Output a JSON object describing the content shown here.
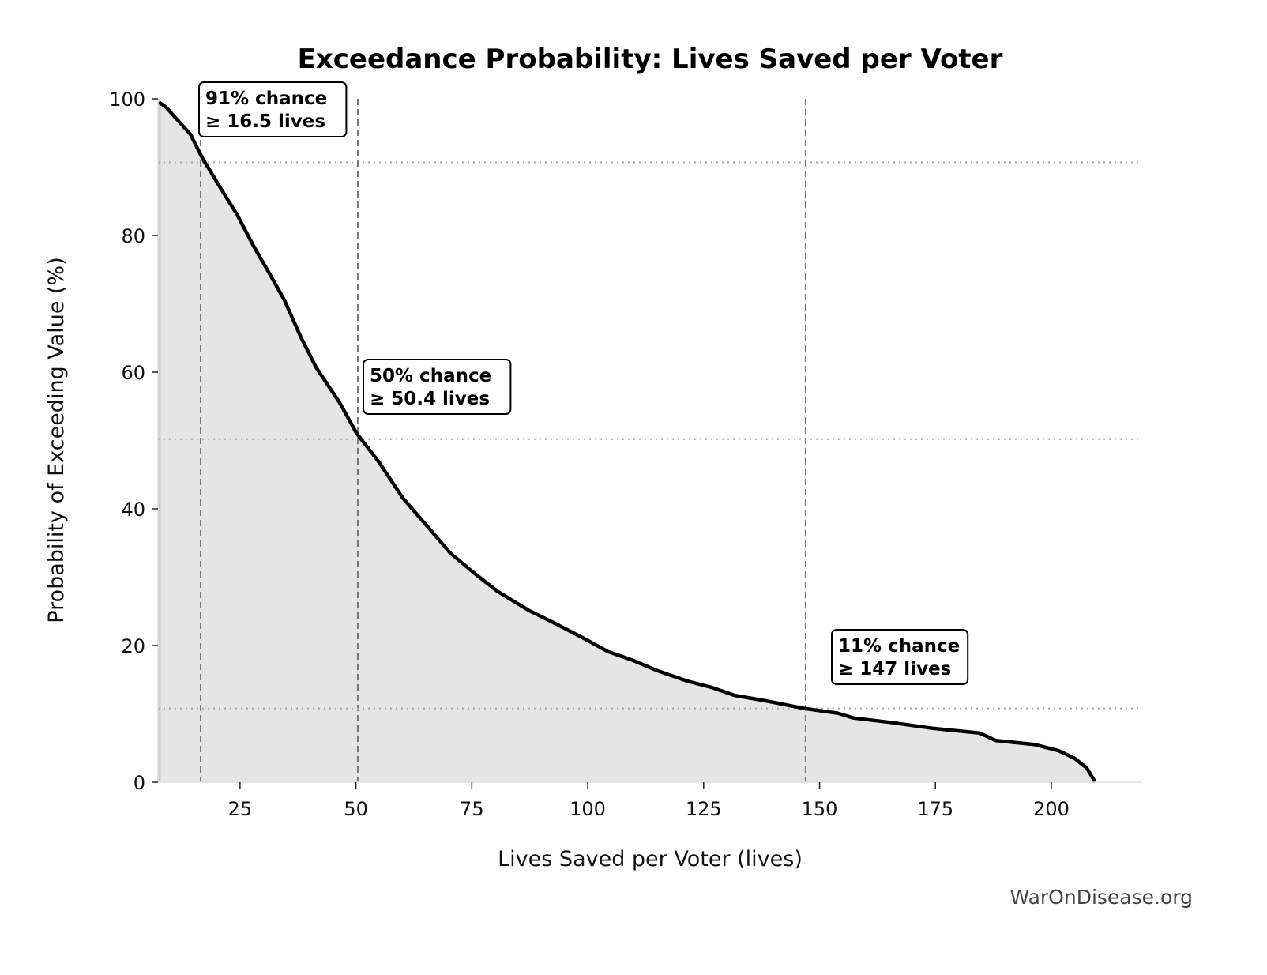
{
  "chart_data": {
    "type": "area",
    "title": "Exceedance Probability: Lives Saved per Voter",
    "xlabel": "Lives Saved per Voter (lives)",
    "ylabel": "Probability of Exceeding Value (%)",
    "xlim": [
      7.3,
      219.6
    ],
    "ylim": [
      0,
      100
    ],
    "xticks": [
      25,
      50,
      75,
      100,
      125,
      150,
      175,
      200
    ],
    "yticks": [
      0,
      20,
      40,
      60,
      80,
      100
    ],
    "grid": false,
    "line_color": "#000000",
    "fill_color": "#e5e5e5",
    "series": [
      {
        "x": [
          7.5,
          9,
          14.3,
          16.9,
          21.0,
          24.4,
          27.8,
          31.2,
          34.6,
          38,
          41.4,
          46.5,
          50.1,
          55,
          60.1,
          65.2,
          70.4,
          75.5,
          80.6,
          87.4,
          92.5,
          99.3,
          104.4,
          109.5,
          114.7,
          121.5,
          126.6,
          131.7,
          138.5,
          146.7,
          153.9,
          157.3,
          165.8,
          174.3,
          184.5,
          188,
          196.5,
          201.6,
          205,
          207.6,
          209.5
        ],
        "y": [
          99.5,
          98.8,
          94.8,
          91.3,
          86.7,
          83,
          78.6,
          74.6,
          70.5,
          65.3,
          60.7,
          55.5,
          51.1,
          46.8,
          41.6,
          37.6,
          33.5,
          30.6,
          27.9,
          25.1,
          23.4,
          21,
          19.1,
          17.9,
          16.4,
          14.8,
          13.9,
          12.7,
          11.9,
          10.8,
          10.1,
          9.4,
          8.7,
          7.9,
          7.2,
          6.1,
          5.5,
          4.6,
          3.5,
          2.1,
          0
        ]
      }
    ],
    "markers": [
      {
        "x": 16.5,
        "y": 90.7,
        "line1": "91% chance",
        "line2": "≥ 16.5 lives"
      },
      {
        "x": 50.4,
        "y": 50.2,
        "line1": "50% chance",
        "line2": "≥ 50.4 lives"
      },
      {
        "x": 147,
        "y": 10.8,
        "line1": "11% chance",
        "line2": "≥ 147 lives"
      }
    ]
  },
  "watermark": "WarOnDisease.org"
}
